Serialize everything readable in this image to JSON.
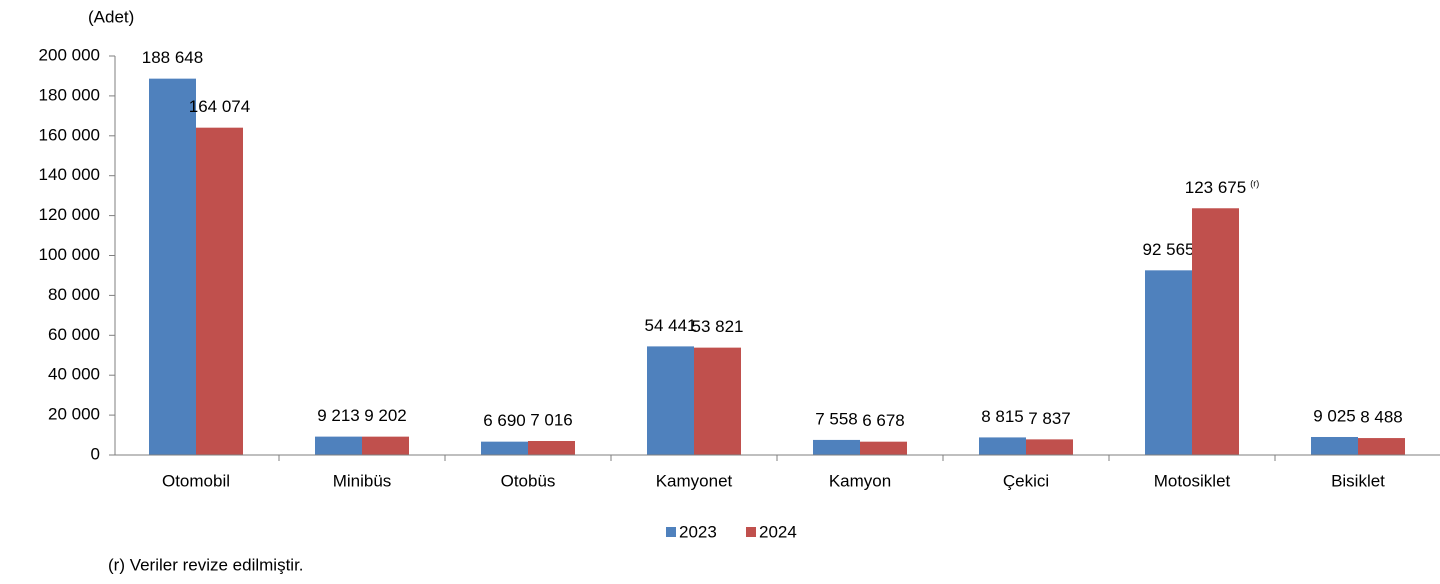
{
  "chart_data": {
    "type": "bar",
    "y_unit_label": "(Adet)",
    "categories": [
      "Otomobil",
      "Minibüs",
      "Otobüs",
      "Kamyonet",
      "Kamyon",
      "Çekici",
      "Motosiklet",
      "Bisiklet"
    ],
    "series": [
      {
        "name": "2023",
        "color": "#4f81bd",
        "values": [
          188648,
          9213,
          6690,
          54441,
          7558,
          8815,
          92565,
          9025
        ],
        "value_labels": [
          "188 648",
          "9 213",
          "6 690",
          "54 441",
          "7 558",
          "8 815",
          "92 565",
          "9 025"
        ]
      },
      {
        "name": "2024",
        "color": "#c0504d",
        "values": [
          164074,
          9202,
          7016,
          53821,
          6678,
          7837,
          123675,
          8488
        ],
        "value_labels": [
          "164 074",
          "9 202",
          "7 016",
          "53 821",
          "6 678",
          "7 837",
          "123 675",
          "8 488"
        ]
      }
    ],
    "annotations": [
      {
        "series": "2024",
        "category": "Motosiklet",
        "text": "(r)"
      }
    ],
    "ylim": [
      0,
      200000
    ],
    "yticks": [
      0,
      {
        "value": 20000,
        "label": "20 000"
      },
      {
        "value": 40000,
        "label": "40 000"
      },
      {
        "value": 60000,
        "label": "60 000"
      },
      {
        "value": 80000,
        "label": "80 000"
      },
      {
        "value": 100000,
        "label": "100 000"
      },
      {
        "value": 120000,
        "label": "120 000"
      },
      {
        "value": 140000,
        "label": "140 000"
      },
      {
        "value": 160000,
        "label": "160 000"
      },
      {
        "value": 180000,
        "label": "180 000"
      },
      {
        "value": 200000,
        "label": "200 000"
      }
    ],
    "grid": false,
    "legend": "bottom",
    "footnote": "(r) Veriler revize edilmiştir."
  }
}
